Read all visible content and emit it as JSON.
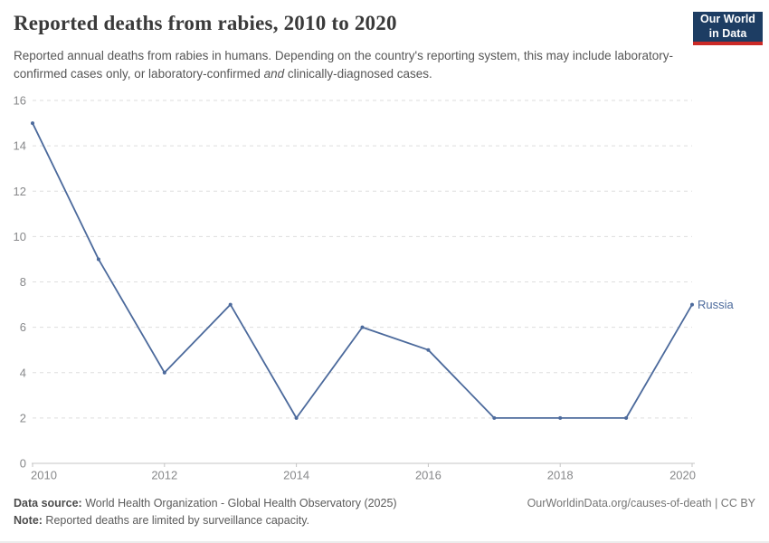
{
  "header": {
    "title": "Reported deaths from rabies, 2010 to 2020",
    "subtitle_part1": "Reported annual deaths from rabies in humans. Depending on the country's reporting system, this may include laboratory-confirmed cases only, or laboratory-confirmed ",
    "subtitle_italic": "and",
    "subtitle_part2": " clinically-diagnosed cases."
  },
  "logo": {
    "line1": "Our World",
    "line2": "in Data",
    "bg_color": "#1d3d63",
    "accent_color": "#cb2a27"
  },
  "chart_data": {
    "type": "line",
    "title": "Reported deaths from rabies, 2010 to 2020",
    "x": [
      2010,
      2011,
      2012,
      2013,
      2014,
      2015,
      2016,
      2017,
      2018,
      2019,
      2020
    ],
    "series": [
      {
        "name": "Russia",
        "values": [
          15,
          9,
          4,
          7,
          2,
          6,
          5,
          2,
          2,
          2,
          7
        ],
        "color": "#4c6a9c"
      }
    ],
    "ylim": [
      0,
      16
    ],
    "yticks": [
      0,
      2,
      4,
      6,
      8,
      10,
      12,
      14,
      16
    ],
    "xticks": [
      2010,
      2012,
      2014,
      2016,
      2018,
      2020
    ],
    "grid": "dashed horizontal gridlines",
    "legend_position": "label at end of line",
    "grid_color": "#dedede",
    "axis_color": "#c4c4c4",
    "tick_label_color": "#87888a"
  },
  "footer": {
    "source_label": "Data source:",
    "source_text": " World Health Organization - Global Health Observatory (2025)",
    "credit": "OurWorldinData.org/causes-of-death | CC BY",
    "note_label": "Note:",
    "note_text": " Reported deaths are limited by surveillance capacity."
  }
}
